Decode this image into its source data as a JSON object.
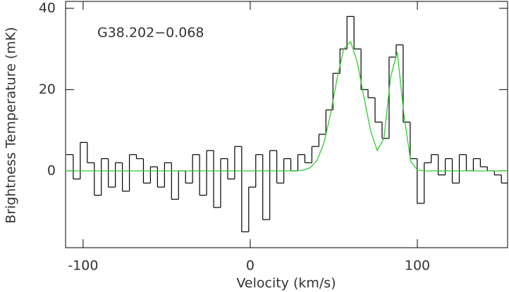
{
  "chart_data": {
    "type": "step",
    "annotation": "G38.202−0.068",
    "xlabel": "Velocity (km/s)",
    "ylabel": "Brightness Temperature (mK)",
    "xlim": [
      -110.5,
      154
    ],
    "ylim": [
      -18.9,
      41.7
    ],
    "xticks": [
      -100,
      0,
      100
    ],
    "yticks": [
      0,
      20,
      40
    ],
    "series": [
      {
        "color": "#000000",
        "x": [
          -108,
          -103.8,
          -99.6,
          -95.4,
          -91.2,
          -87,
          -82.8,
          -78.6,
          -74.4,
          -70.2,
          -66,
          -61.8,
          -57.6,
          -53.4,
          -49.2,
          -45,
          -40.8,
          -36.6,
          -32.4,
          -28.2,
          -24,
          -19.8,
          -15.6,
          -11.4,
          -7.2,
          -3,
          1.2,
          5.4,
          9.6,
          13.8,
          18,
          22.2,
          26.4,
          30.6,
          34.8,
          39,
          43.2,
          47.4,
          51.6,
          55.8,
          60,
          64.2,
          68.4,
          72.6,
          76.8,
          81,
          85.2,
          89.4,
          93.6,
          97.8,
          102,
          106.2,
          110.4,
          114.6,
          118.8,
          123,
          127.2,
          131.4,
          135.6,
          139.8,
          144,
          148.2,
          152.4
        ],
        "values": [
          4,
          -2,
          7,
          2,
          -6,
          3,
          -4,
          2,
          -5,
          4,
          3,
          -3,
          1,
          -4,
          2,
          -7,
          0,
          -3,
          4,
          -6,
          5,
          -9,
          3,
          -2,
          6,
          -15,
          -4,
          4,
          -12,
          5,
          -3,
          3,
          0,
          4,
          2,
          6,
          9,
          15,
          24,
          30,
          38,
          30,
          20,
          18,
          12,
          8,
          28,
          31,
          12,
          3,
          -8,
          2,
          4,
          -1,
          3,
          -3,
          4,
          0,
          3,
          1,
          0,
          -1,
          -3
        ]
      },
      {
        "color": "#2ecc2e",
        "x": [
          -110.5,
          20,
          24,
          28,
          32,
          36,
          40,
          44,
          48,
          52,
          56,
          60,
          64,
          68,
          72,
          76,
          80,
          84,
          88,
          92,
          96,
          100,
          104,
          154
        ],
        "values": [
          0,
          0,
          0,
          0.04,
          0.2,
          0.8,
          2.6,
          6.7,
          13.8,
          22.8,
          30.0,
          31.8,
          26.9,
          18.2,
          9.9,
          5.0,
          8.0,
          23.1,
          29.2,
          13.7,
          2.4,
          0.2,
          0,
          0
        ]
      }
    ]
  }
}
